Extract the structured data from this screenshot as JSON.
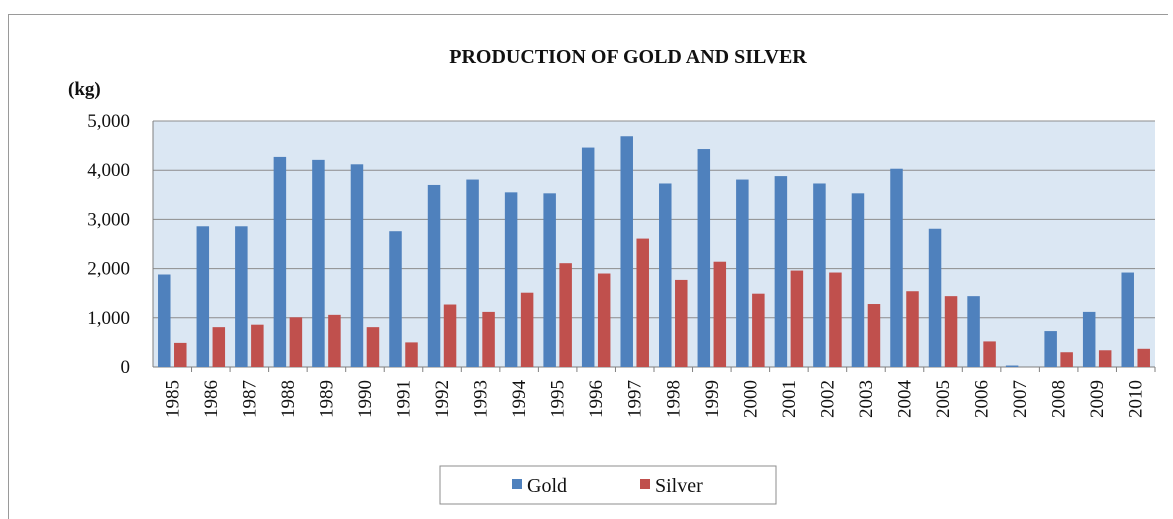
{
  "chart_data": {
    "type": "bar",
    "title": "PRODUCTION OF GOLD AND SILVER",
    "unit_label": "(kg)",
    "categories": [
      "1985",
      "1986",
      "1987",
      "1988",
      "1989",
      "1990",
      "1991",
      "1992",
      "1993",
      "1994",
      "1995",
      "1996",
      "1997",
      "1998",
      "1999",
      "2000",
      "2001",
      "2002",
      "2003",
      "2004",
      "2005",
      "2006",
      "2007",
      "2008",
      "2009",
      "2010"
    ],
    "series": [
      {
        "name": "Gold",
        "color": "#4f81bd",
        "values": [
          1880,
          2860,
          2860,
          4270,
          4210,
          4120,
          2760,
          3700,
          3810,
          3550,
          3530,
          4460,
          4690,
          3730,
          4430,
          3810,
          3880,
          3730,
          3530,
          4030,
          2810,
          1440,
          30,
          730,
          1120,
          1920
        ]
      },
      {
        "name": "Silver",
        "color": "#c0504d",
        "values": [
          490,
          810,
          860,
          1010,
          1060,
          810,
          500,
          1270,
          1120,
          1510,
          2110,
          1900,
          2610,
          1770,
          2140,
          1490,
          1960,
          1920,
          1280,
          1540,
          1440,
          520,
          0,
          300,
          340,
          370
        ]
      }
    ],
    "ylim": [
      0,
      5000
    ],
    "yticks": [
      0,
      1000,
      2000,
      3000,
      4000,
      5000
    ],
    "ytick_labels": [
      "0",
      "1,000",
      "2,000",
      "3,000",
      "4,000",
      "5,000"
    ],
    "grid": true,
    "legend_position": "bottom-center",
    "plot_background": "#dbe7f3"
  }
}
